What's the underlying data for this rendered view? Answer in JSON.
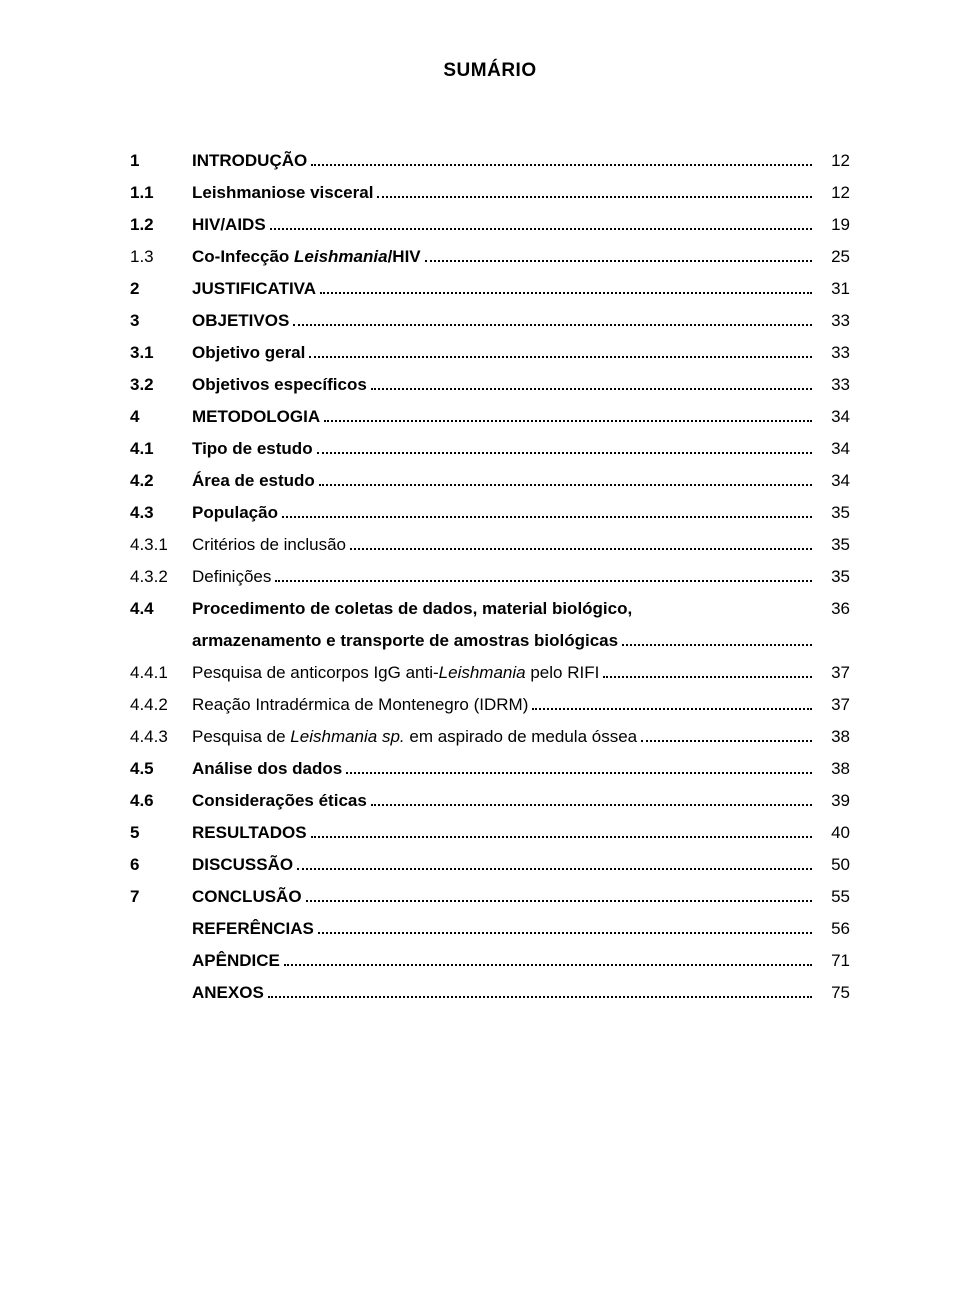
{
  "title": "SUMÁRIO",
  "entries": [
    {
      "num": "1",
      "label": "INTRODUÇÃO",
      "page": "12",
      "bold": true
    },
    {
      "num": "1.1",
      "label": "Leishmaniose visceral",
      "page": "12",
      "bold": true
    },
    {
      "num": "1.2",
      "label": "HIV/AIDS",
      "page": "19",
      "bold": true
    },
    {
      "num": "1.3",
      "label_parts": [
        {
          "text": "Co-Infecção ",
          "bold": true
        },
        {
          "text": "Leishmania",
          "bold": true,
          "italic": true
        },
        {
          "text": "/HIV",
          "bold": true
        }
      ],
      "page": "25"
    },
    {
      "num": "2",
      "label": "JUSTIFICATIVA",
      "page": "31",
      "bold": true
    },
    {
      "num": "3",
      "label": "OBJETIVOS",
      "page": "33",
      "bold": true
    },
    {
      "num": "3.1",
      "label": "Objetivo geral",
      "page": "33",
      "bold": true
    },
    {
      "num": "3.2",
      "label": "Objetivos específicos",
      "page": "33",
      "bold": true
    },
    {
      "num": "4",
      "label": "METODOLOGIA",
      "page": "34",
      "bold": true
    },
    {
      "num": "4.1",
      "label": "Tipo de estudo",
      "page": "34",
      "bold": true
    },
    {
      "num": "4.2",
      "label": "Área de estudo",
      "page": "34",
      "bold": true
    },
    {
      "num": "4.3",
      "label": "População",
      "page": "35",
      "bold": true
    },
    {
      "num": "4.3.1",
      "label": "Critérios de inclusão",
      "page": "35",
      "bold": false
    },
    {
      "num": "4.3.2",
      "label": "Definições",
      "page": "35",
      "bold": false
    },
    {
      "num": "4.4",
      "line1": "Procedimento de coletas de dados, material biológico,",
      "line2": "armazenamento e transporte de amostras biológicas",
      "page": "36",
      "bold": true
    },
    {
      "num": "4.4.1",
      "label_parts": [
        {
          "text": "Pesquisa de anticorpos IgG anti-"
        },
        {
          "text": "Leishmania",
          "italic": true
        },
        {
          "text": " pelo RIFI"
        }
      ],
      "page": "37"
    },
    {
      "num": "4.4.2",
      "label": "Reação Intradérmica de Montenegro (IDRM)",
      "page": "37",
      "bold": false
    },
    {
      "num": "4.4.3",
      "label_parts": [
        {
          "text": "Pesquisa de "
        },
        {
          "text": "Leishmania sp.",
          "italic": true
        },
        {
          "text": " em aspirado de medula óssea"
        }
      ],
      "page": "38"
    },
    {
      "num": "4.5",
      "label": "Análise dos dados",
      "page": "38",
      "bold": true
    },
    {
      "num": "4.6",
      "label": "Considerações éticas",
      "page": "39",
      "bold": true
    },
    {
      "num": "5",
      "label": "RESULTADOS",
      "page": "40",
      "bold": true
    },
    {
      "num": "6",
      "label": "DISCUSSÃO",
      "page": "50",
      "bold": true
    },
    {
      "num": "7",
      "label": "CONCLUSÃO",
      "page": "55",
      "bold": true
    },
    {
      "num": "",
      "label": "REFERÊNCIAS",
      "page": "56",
      "bold": true
    },
    {
      "num": "",
      "label": "APÊNDICE",
      "page": "71",
      "bold": true
    },
    {
      "num": "",
      "label": "ANEXOS",
      "page": "75",
      "bold": true
    }
  ]
}
